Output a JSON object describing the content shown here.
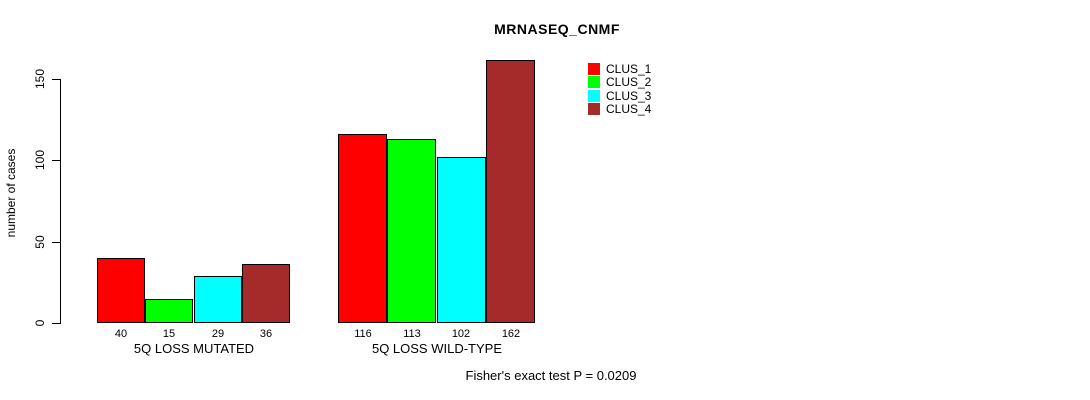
{
  "chart_data": {
    "type": "bar",
    "title": "MRNASEQ_CNMF",
    "ylabel": "number of cases",
    "xlabel": "",
    "yticks": [
      0,
      50,
      100,
      150
    ],
    "ylim": [
      0,
      165
    ],
    "grid": false,
    "legend_position": "top-right",
    "categories": [
      "5Q LOSS MUTATED",
      "5Q LOSS WILD-TYPE"
    ],
    "series": [
      {
        "name": "CLUS_1",
        "color": "#FF0000",
        "values": [
          40,
          116
        ]
      },
      {
        "name": "CLUS_2",
        "color": "#00FF00",
        "values": [
          15,
          113
        ]
      },
      {
        "name": "CLUS_3",
        "color": "#00FFFF",
        "values": [
          29,
          102
        ]
      },
      {
        "name": "CLUS_4",
        "color": "#A52A2A",
        "values": [
          36,
          162
        ]
      }
    ],
    "bar_value_labels": [
      [
        40,
        15,
        29,
        36
      ],
      [
        116,
        113,
        102,
        162
      ]
    ],
    "annotation": "Fisher's exact test P = 0.0209"
  },
  "colors": {
    "axis": "#000000",
    "background": "#FFFFFF",
    "bar_border": "#000000"
  }
}
